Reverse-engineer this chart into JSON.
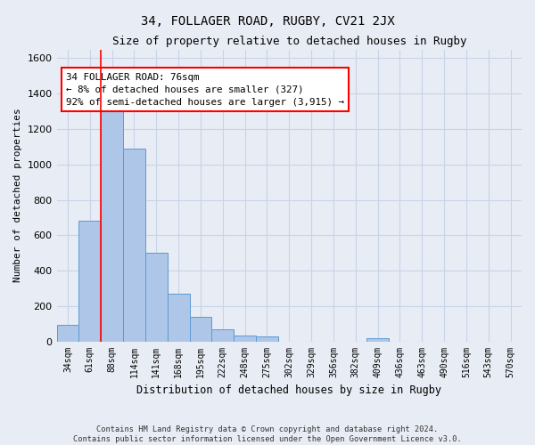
{
  "title": "34, FOLLAGER ROAD, RUGBY, CV21 2JX",
  "subtitle": "Size of property relative to detached houses in Rugby",
  "xlabel": "Distribution of detached houses by size in Rugby",
  "ylabel": "Number of detached properties",
  "footer_line1": "Contains HM Land Registry data © Crown copyright and database right 2024.",
  "footer_line2": "Contains public sector information licensed under the Open Government Licence v3.0.",
  "categories": [
    "34sqm",
    "61sqm",
    "88sqm",
    "114sqm",
    "141sqm",
    "168sqm",
    "195sqm",
    "222sqm",
    "248sqm",
    "275sqm",
    "302sqm",
    "329sqm",
    "356sqm",
    "382sqm",
    "409sqm",
    "436sqm",
    "463sqm",
    "490sqm",
    "516sqm",
    "543sqm",
    "570sqm"
  ],
  "values": [
    95,
    680,
    1340,
    1090,
    500,
    270,
    140,
    70,
    35,
    30,
    0,
    0,
    0,
    0,
    20,
    0,
    0,
    0,
    0,
    0,
    0
  ],
  "bar_color": "#aec6e8",
  "bar_edge_color": "#5b9bd5",
  "vline_color": "red",
  "annotation_text": "34 FOLLAGER ROAD: 76sqm\n← 8% of detached houses are smaller (327)\n92% of semi-detached houses are larger (3,915) →",
  "annotation_box_color": "white",
  "annotation_box_edge": "red",
  "ylim": [
    0,
    1650
  ],
  "yticks": [
    0,
    200,
    400,
    600,
    800,
    1000,
    1200,
    1400,
    1600
  ],
  "grid_color": "#c8d4e8",
  "background_color": "#e8ecf4",
  "plot_bg_color": "#e8ecf4"
}
